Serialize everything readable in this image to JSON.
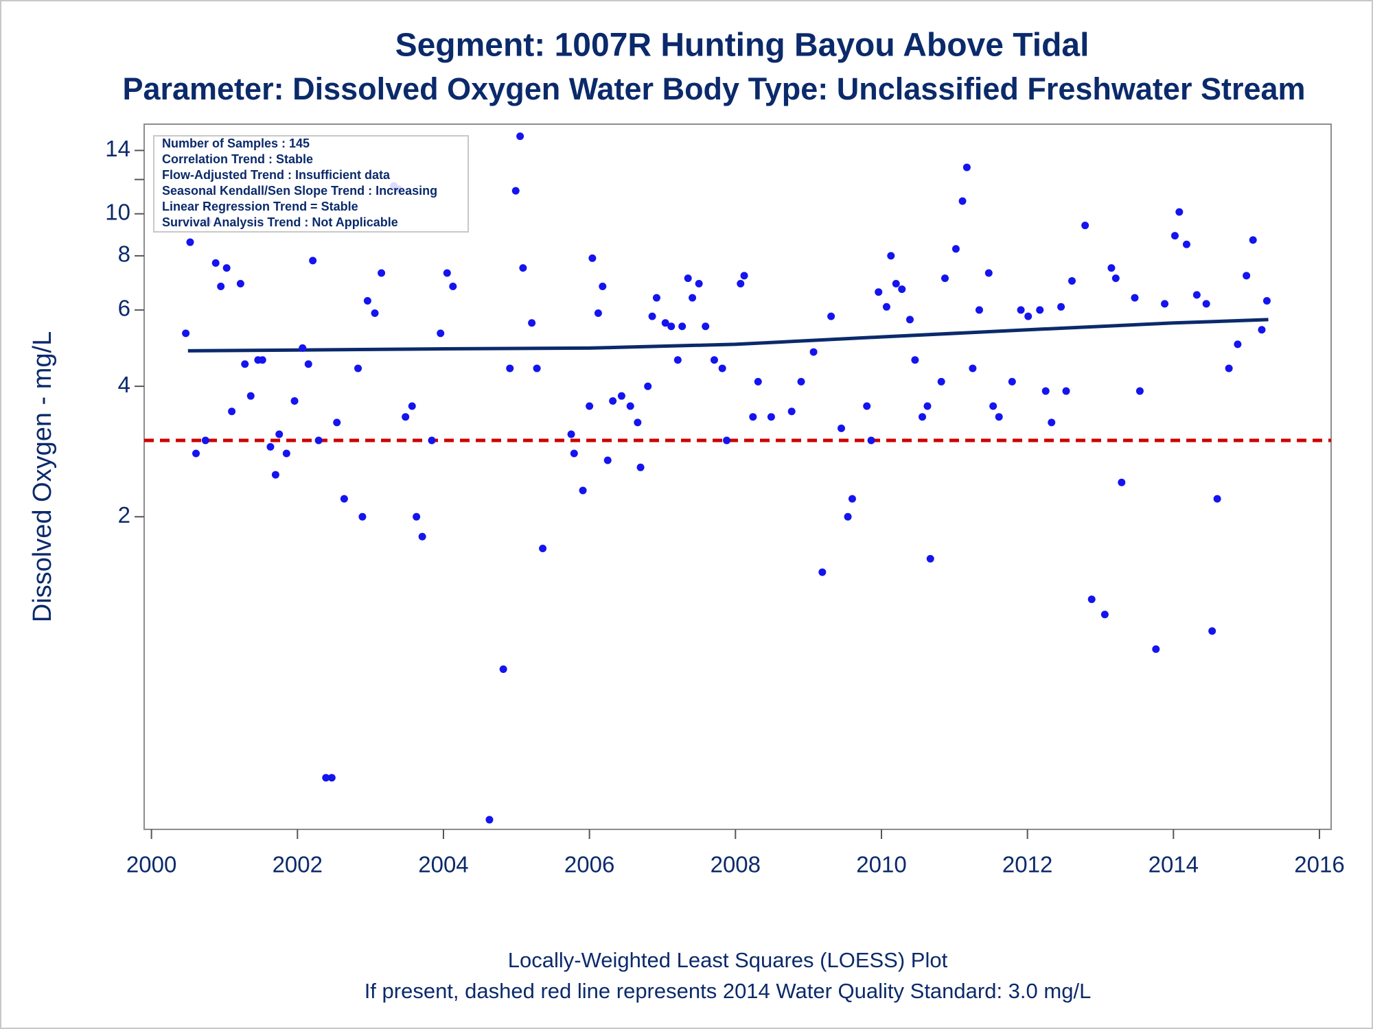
{
  "chart_data": {
    "type": "scatter",
    "title": "Segment: 1007R  Hunting Bayou Above Tidal",
    "subtitle": "Parameter: Dissolved Oxygen   Water Body Type: Unclassified Freshwater Stream",
    "y_label": "Dissolved Oxygen - mg/L",
    "footnotes": [
      "Locally-Weighted Least Squares (LOESS) Plot",
      "If present, dashed red line represents 2014 Water Quality Standard: 3.0 mg/L"
    ],
    "stats_box": [
      "Number of Samples : 145",
      "Correlation Trend : Stable",
      "Flow-Adjusted Trend : Insufficient data",
      "Seasonal Kendall/Sen Slope Trend : Increasing",
      "Linear Regression Trend = Stable",
      "Survival Analysis Trend : Not Applicable"
    ],
    "y_scale": "log",
    "xlim": [
      1999.9,
      2016.16
    ],
    "xticks": [
      2000,
      2002,
      2004,
      2006,
      2008,
      2010,
      2012,
      2014,
      2016
    ],
    "ylim": [
      0.38,
      16.1
    ],
    "yticks": [
      2,
      4,
      6,
      8,
      10,
      14
    ],
    "yminorticks": [
      12
    ],
    "point_color": "#1414ee",
    "x": [
      2000.47,
      2000.53,
      2000.61,
      2000.74,
      2000.77,
      2000.88,
      2000.95,
      2001.03,
      2001.1,
      2001.22,
      2001.28,
      2001.36,
      2001.46,
      2001.52,
      2001.63,
      2001.7,
      2001.75,
      2001.85,
      2001.96,
      2002.07,
      2002.15,
      2002.21,
      2002.29,
      2002.39,
      2002.47,
      2002.54,
      2002.64,
      2002.83,
      2002.89,
      2002.96,
      2003.06,
      2003.15,
      2003.32,
      2003.39,
      2003.48,
      2003.57,
      2003.63,
      2003.71,
      2003.84,
      2003.96,
      2004.05,
      2004.13,
      2004.63,
      2004.82,
      2004.91,
      2004.99,
      2005.05,
      2005.09,
      2005.21,
      2005.28,
      2005.36,
      2005.75,
      2005.79,
      2005.91,
      2006.0,
      2006.04,
      2006.12,
      2006.18,
      2006.25,
      2006.32,
      2006.44,
      2006.56,
      2006.66,
      2006.7,
      2006.8,
      2006.86,
      2006.92,
      2007.04,
      2007.12,
      2007.21,
      2007.27,
      2007.35,
      2007.41,
      2007.5,
      2007.59,
      2007.71,
      2007.82,
      2007.88,
      2008.07,
      2008.12,
      2008.24,
      2008.31,
      2008.49,
      2008.77,
      2008.9,
      2009.07,
      2009.19,
      2009.31,
      2009.45,
      2009.54,
      2009.6,
      2009.8,
      2009.86,
      2009.96,
      2010.07,
      2010.13,
      2010.2,
      2010.28,
      2010.39,
      2010.46,
      2010.56,
      2010.63,
      2010.67,
      2010.82,
      2010.87,
      2011.02,
      2011.11,
      2011.17,
      2011.25,
      2011.34,
      2011.47,
      2011.53,
      2011.61,
      2011.79,
      2011.91,
      2012.01,
      2012.17,
      2012.25,
      2012.33,
      2012.46,
      2012.53,
      2012.61,
      2012.79,
      2012.88,
      2013.06,
      2013.15,
      2013.21,
      2013.29,
      2013.47,
      2013.54,
      2013.76,
      2013.88,
      2014.02,
      2014.08,
      2014.18,
      2014.32,
      2014.45,
      2014.53,
      2014.6,
      2014.76,
      2014.88,
      2015.0,
      2015.09,
      2015.21,
      2015.28
    ],
    "values": [
      5.3,
      8.6,
      2.8,
      3.0,
      9.6,
      7.7,
      6.8,
      7.5,
      3.5,
      6.9,
      4.5,
      3.8,
      4.6,
      4.6,
      2.9,
      2.5,
      3.1,
      2.8,
      3.7,
      4.9,
      4.5,
      7.8,
      3.0,
      0.5,
      0.5,
      3.3,
      2.2,
      4.4,
      2.0,
      6.3,
      5.9,
      7.3,
      11.6,
      11.4,
      3.4,
      3.6,
      2.0,
      1.8,
      3.0,
      5.3,
      7.3,
      6.8,
      0.4,
      0.89,
      4.4,
      11.3,
      15.1,
      7.5,
      5.6,
      4.4,
      1.69,
      3.1,
      2.8,
      2.3,
      3.6,
      7.9,
      5.9,
      6.8,
      2.7,
      3.7,
      3.8,
      3.6,
      3.3,
      2.6,
      4.0,
      5.8,
      6.4,
      5.6,
      5.5,
      4.6,
      5.5,
      7.1,
      6.4,
      6.9,
      5.5,
      4.6,
      4.4,
      3.0,
      6.9,
      7.2,
      3.4,
      4.1,
      3.4,
      3.5,
      4.1,
      4.8,
      1.49,
      5.8,
      3.2,
      2.0,
      2.2,
      3.6,
      3.0,
      6.6,
      6.1,
      8.0,
      6.9,
      6.7,
      5.7,
      4.6,
      3.4,
      3.6,
      1.6,
      4.1,
      7.1,
      8.3,
      10.7,
      12.8,
      4.4,
      6.0,
      7.3,
      3.6,
      3.4,
      4.1,
      6.0,
      5.8,
      6.0,
      3.9,
      3.3,
      6.1,
      3.9,
      7.0,
      9.4,
      1.29,
      1.19,
      7.5,
      7.1,
      2.4,
      6.4,
      3.9,
      0.99,
      6.2,
      8.9,
      10.1,
      8.5,
      6.5,
      6.2,
      1.09,
      2.2,
      4.4,
      5.0,
      7.2,
      8.7,
      5.4,
      6.3
    ],
    "loess": {
      "color": "#0b2a6b",
      "x": [
        2000.5,
        2002,
        2004,
        2006,
        2008,
        2010,
        2012,
        2014,
        2015.3
      ],
      "values": [
        4.83,
        4.85,
        4.88,
        4.9,
        5.0,
        5.2,
        5.4,
        5.6,
        5.7
      ]
    },
    "reference_line": {
      "value": 3.0,
      "color": "#cc0000"
    }
  }
}
